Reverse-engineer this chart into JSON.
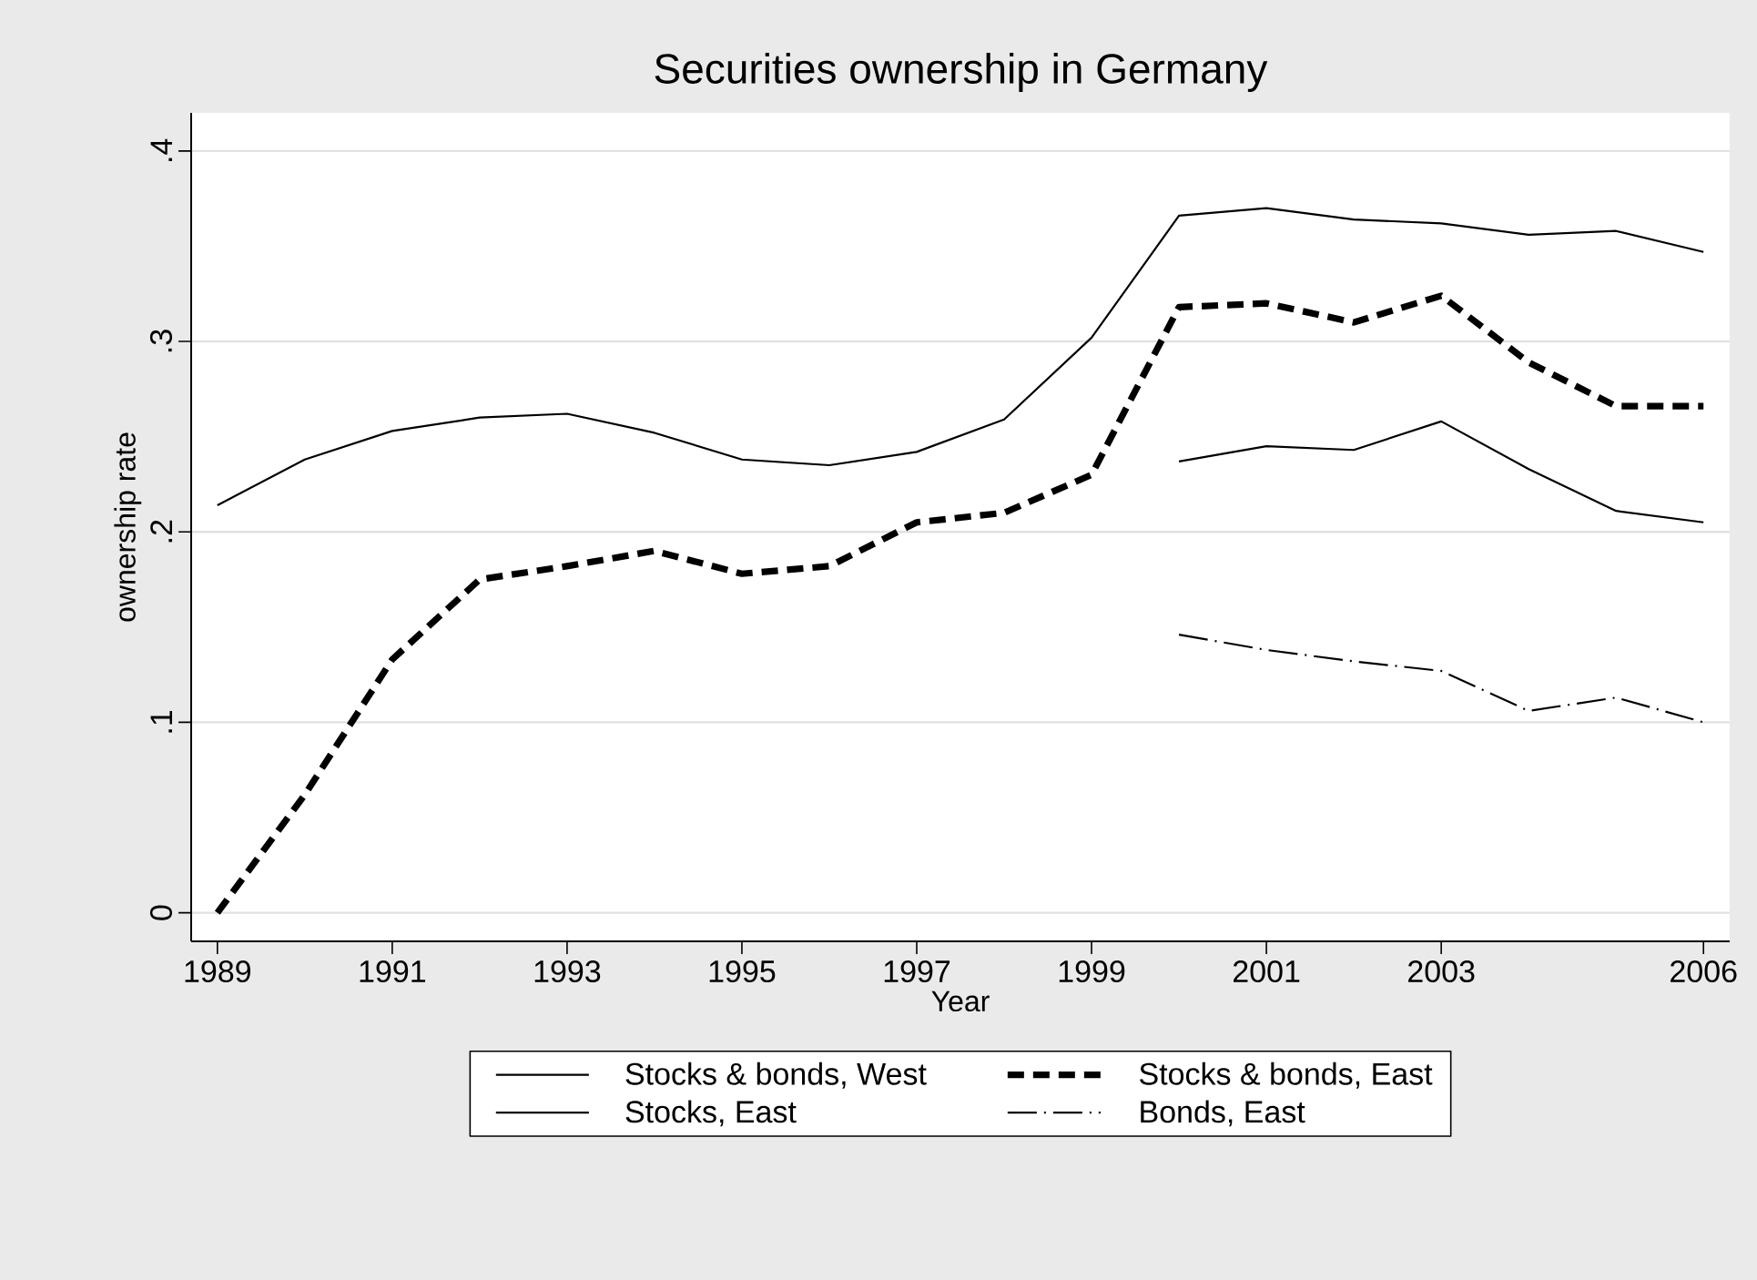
{
  "chart_data": {
    "type": "line",
    "title": "Securities ownership in Germany",
    "xlabel": "Year",
    "ylabel": "ownership rate",
    "xlim": [
      1988.7,
      2006.3
    ],
    "ylim": [
      -0.015,
      0.42
    ],
    "xticks": [
      1989,
      1991,
      1993,
      1995,
      1997,
      1999,
      2001,
      2003,
      2006
    ],
    "yticks": [
      {
        "value": 0,
        "label": "0"
      },
      {
        "value": 0.1,
        "label": ".1"
      },
      {
        "value": 0.2,
        "label": ".2"
      },
      {
        "value": 0.3,
        "label": ".3"
      },
      {
        "value": 0.4,
        "label": ".4"
      }
    ],
    "grid": "y",
    "legend": "bottom",
    "marker": "none",
    "series": [
      {
        "name": "Stocks & bonds, West",
        "color": "#000000",
        "line_style": "solid",
        "x": [
          1989,
          1990,
          1991,
          1992,
          1993,
          1994,
          1995,
          1996,
          1997,
          1998,
          1999,
          2000,
          2001,
          2002,
          2003,
          2004,
          2005,
          2006
        ],
        "values": [
          0.214,
          0.238,
          0.253,
          0.26,
          0.262,
          0.252,
          0.238,
          0.235,
          0.242,
          0.259,
          0.302,
          0.366,
          0.37,
          0.364,
          0.362,
          0.356,
          0.358,
          0.347
        ]
      },
      {
        "name": "Stocks & bonds, East",
        "color": "#000000",
        "line_style": "dashed",
        "x": [
          1989,
          1990,
          1991,
          1992,
          1993,
          1994,
          1995,
          1996,
          1997,
          1998,
          1999,
          2000,
          2001,
          2002,
          2003,
          2004,
          2005,
          2006
        ],
        "values": [
          0,
          0.062,
          0.133,
          0.175,
          0.182,
          0.19,
          0.178,
          0.182,
          0.205,
          0.21,
          0.23,
          0.318,
          0.32,
          0.31,
          0.324,
          0.289,
          0.266,
          0.266
        ]
      },
      {
        "name": "Stocks, East",
        "color": "#000000",
        "line_style": "solid",
        "x": [
          2000,
          2001,
          2002,
          2003,
          2004,
          2005,
          2006
        ],
        "values": [
          0.237,
          0.245,
          0.243,
          0.258,
          0.233,
          0.211,
          0.205
        ]
      },
      {
        "name": "Bonds, East",
        "color": "#000000",
        "line_style": "dashdot",
        "x": [
          2000,
          2001,
          2002,
          2003,
          2004,
          2005,
          2006
        ],
        "values": [
          0.146,
          0.138,
          0.132,
          0.127,
          0.106,
          0.113,
          0.1
        ]
      }
    ]
  }
}
